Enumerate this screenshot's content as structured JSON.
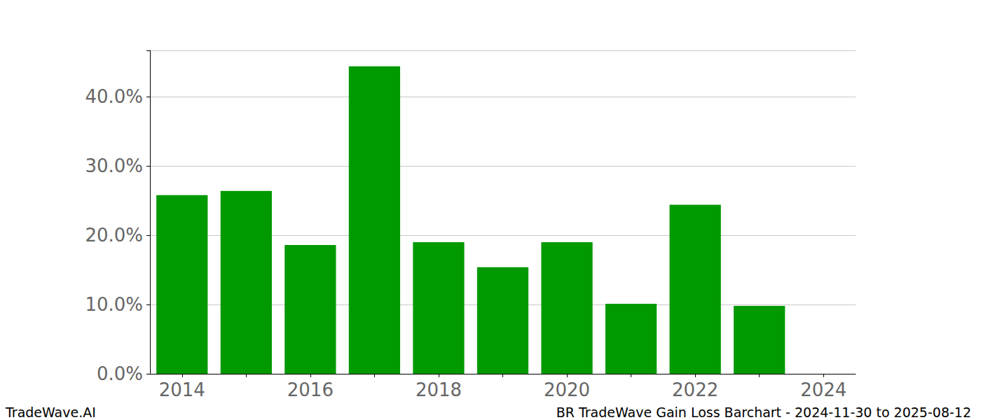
{
  "chart_data": {
    "type": "bar",
    "categories": [
      "2014",
      null,
      "2016",
      null,
      "2018",
      null,
      "2020",
      null,
      "2022",
      null,
      "2024"
    ],
    "values": [
      25.8,
      26.4,
      18.6,
      44.4,
      19.0,
      15.4,
      19.0,
      10.1,
      24.4,
      9.8,
      null
    ],
    "color": "#009900",
    "ylim": [
      0,
      46.7
    ],
    "yticks": [
      {
        "value": 0,
        "label": "0.0%"
      },
      {
        "value": 10,
        "label": "10.0%"
      },
      {
        "value": 20,
        "label": "20.0%"
      },
      {
        "value": 30,
        "label": "30.0%"
      },
      {
        "value": 40,
        "label": "40.0%"
      }
    ],
    "grid": true,
    "annotations": [
      "TradeWave.AI",
      "BR TradeWave Gain Loss Barchart - 2024-11-30 to 2025-08-12"
    ]
  }
}
